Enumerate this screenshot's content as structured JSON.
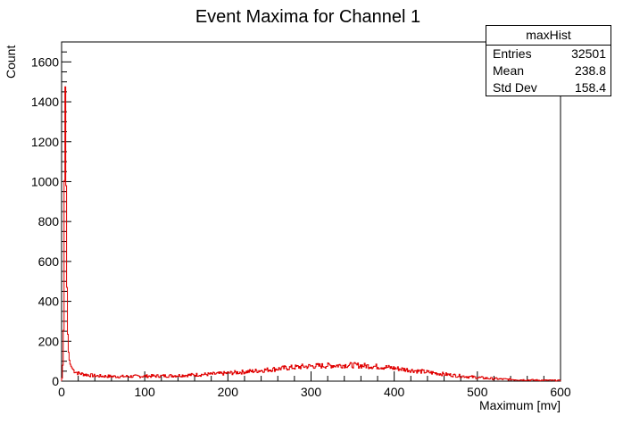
{
  "chart_data": {
    "type": "histogram",
    "title": "Event Maxima for Channel 1",
    "xlabel": "Maximum [mv]",
    "ylabel": "Count",
    "xlim": [
      0,
      600
    ],
    "ylim": [
      0,
      1700
    ],
    "xticks": [
      0,
      100,
      200,
      300,
      400,
      500,
      600
    ],
    "yticks": [
      0,
      200,
      400,
      600,
      800,
      1000,
      1200,
      1400,
      1600
    ],
    "bin_width": 1,
    "series_color": "#e00000",
    "grid": false,
    "points": [
      [
        0,
        0
      ],
      [
        1,
        30
      ],
      [
        2,
        130
      ],
      [
        3,
        380
      ],
      [
        4,
        1630
      ],
      [
        5,
        1320
      ],
      [
        6,
        640
      ],
      [
        7,
        300
      ],
      [
        8,
        170
      ],
      [
        9,
        120
      ],
      [
        10,
        90
      ],
      [
        12,
        70
      ],
      [
        15,
        52
      ],
      [
        20,
        40
      ],
      [
        30,
        32
      ],
      [
        40,
        27
      ],
      [
        50,
        25
      ],
      [
        70,
        23
      ],
      [
        100,
        25
      ],
      [
        130,
        27
      ],
      [
        150,
        30
      ],
      [
        180,
        35
      ],
      [
        200,
        40
      ],
      [
        230,
        50
      ],
      [
        250,
        58
      ],
      [
        270,
        66
      ],
      [
        290,
        73
      ],
      [
        300,
        75
      ],
      [
        320,
        78
      ],
      [
        340,
        80
      ],
      [
        350,
        80
      ],
      [
        370,
        76
      ],
      [
        390,
        70
      ],
      [
        410,
        60
      ],
      [
        430,
        50
      ],
      [
        450,
        40
      ],
      [
        470,
        30
      ],
      [
        490,
        22
      ],
      [
        510,
        15
      ],
      [
        530,
        10
      ],
      [
        550,
        7
      ],
      [
        570,
        5
      ],
      [
        590,
        4
      ],
      [
        600,
        3
      ]
    ],
    "stats": {
      "name": "maxHist",
      "rows": [
        {
          "label": "Entries",
          "value": "32501"
        },
        {
          "label": "Mean",
          "value": "238.8"
        },
        {
          "label": "Std Dev",
          "value": "158.4"
        }
      ]
    }
  }
}
